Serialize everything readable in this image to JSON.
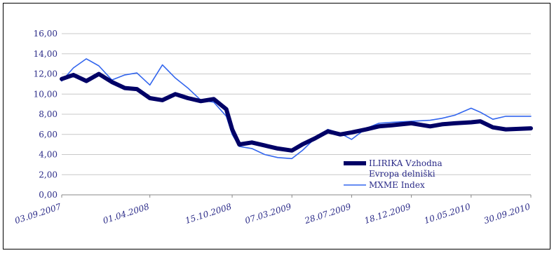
{
  "chart_data": {
    "type": "line",
    "title": "",
    "xlabel": "",
    "ylabel": "",
    "ylim": [
      0,
      16
    ],
    "y_ticks": [
      "0,00",
      "2,00",
      "4,00",
      "6,00",
      "8,00",
      "10,00",
      "12,00",
      "14,00",
      "16,00"
    ],
    "x_ticks": [
      "03.09.2007",
      "01.04.2008",
      "15.10.2008",
      "07.03.2009",
      "28.07.2009",
      "18.12.2009",
      "10.05.2010",
      "30.09.2010"
    ],
    "grid": "horizontal",
    "legend_position": "bottom-right",
    "series": [
      {
        "name": "ILIRIKA Vzhodna Evropa delniški",
        "legend_lines": [
          "ILIRIKA Vzhodna",
          "Evropa delniški"
        ],
        "color": "#000066",
        "x": [
          "03.09.2007",
          "01.10.2007",
          "01.11.2007",
          "01.12.2007",
          "01.01.2008",
          "01.02.2008",
          "01.03.2008",
          "01.04.2008",
          "01.05.2008",
          "01.06.2008",
          "01.07.2008",
          "01.08.2008",
          "01.09.2008",
          "01.10.2008",
          "15.10.2008",
          "01.11.2008",
          "01.12.2008",
          "01.01.2009",
          "01.02.2009",
          "07.03.2009",
          "01.04.2009",
          "01.05.2009",
          "01.06.2009",
          "01.07.2009",
          "28.07.2009",
          "01.09.2009",
          "01.10.2009",
          "01.11.2009",
          "18.12.2009",
          "01.02.2010",
          "01.03.2010",
          "01.04.2010",
          "10.05.2010",
          "01.06.2010",
          "01.07.2010",
          "01.08.2010",
          "30.09.2010"
        ],
        "values": [
          11.5,
          11.9,
          11.3,
          12.0,
          11.2,
          10.6,
          10.5,
          9.6,
          9.4,
          10.0,
          9.6,
          9.3,
          9.5,
          8.5,
          6.5,
          5.0,
          5.2,
          4.9,
          4.6,
          4.4,
          5.0,
          5.6,
          6.3,
          6.0,
          6.2,
          6.5,
          6.8,
          6.9,
          7.1,
          6.8,
          7.0,
          7.1,
          7.2,
          7.3,
          6.7,
          6.5,
          6.6
        ]
      },
      {
        "name": "MXME Index",
        "legend_lines": [
          "MXME Index"
        ],
        "color": "#3366ee",
        "x": [
          "03.09.2007",
          "01.10.2007",
          "01.11.2007",
          "01.12.2007",
          "01.01.2008",
          "01.02.2008",
          "01.03.2008",
          "01.04.2008",
          "01.05.2008",
          "01.06.2008",
          "01.07.2008",
          "01.08.2008",
          "01.09.2008",
          "01.10.2008",
          "15.10.2008",
          "01.11.2008",
          "01.12.2008",
          "01.01.2009",
          "01.02.2009",
          "07.03.2009",
          "01.04.2009",
          "01.05.2009",
          "01.06.2009",
          "01.07.2009",
          "28.07.2009",
          "01.09.2009",
          "01.10.2009",
          "01.11.2009",
          "18.12.2009",
          "01.02.2010",
          "01.03.2010",
          "01.04.2010",
          "10.05.2010",
          "01.06.2010",
          "01.07.2010",
          "01.08.2010",
          "30.09.2010"
        ],
        "values": [
          11.3,
          12.6,
          13.5,
          12.8,
          11.4,
          11.9,
          12.1,
          10.9,
          12.9,
          11.6,
          10.6,
          9.4,
          9.2,
          7.8,
          6.0,
          4.8,
          4.6,
          4.0,
          3.7,
          3.6,
          4.4,
          5.6,
          6.5,
          6.1,
          5.5,
          6.6,
          7.1,
          7.2,
          7.3,
          7.4,
          7.6,
          7.9,
          8.6,
          8.2,
          7.5,
          7.8,
          7.8
        ]
      }
    ]
  }
}
